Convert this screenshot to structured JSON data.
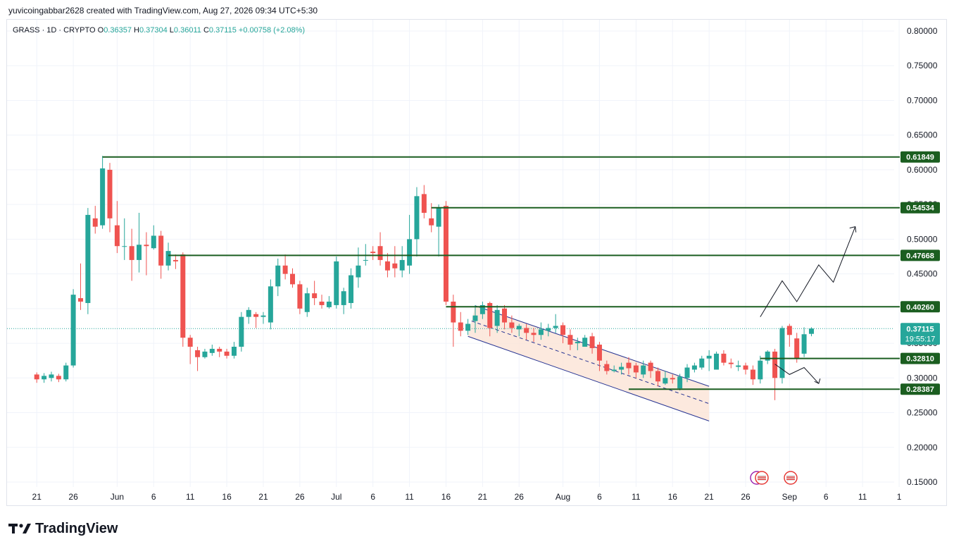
{
  "header": {
    "attribution": "yuvicoingabbar2628 created with TradingView.com, Aug 27, 2026 09:34 UTC+5:30"
  },
  "legend": {
    "symbol": "GRASS · 1D · CRYPTO",
    "open_label": "O",
    "open": "0.36357",
    "high_label": "H",
    "high": "0.37304",
    "low_label": "L",
    "low": "0.36011",
    "close_label": "C",
    "close": "0.37115",
    "change": "+0.00758 (+2.08%)"
  },
  "brand": {
    "name": "TradingView"
  },
  "colors": {
    "up": "#26a69a",
    "down": "#ef5350",
    "level": "#1b5e20",
    "channel": "#283593",
    "channel_fill": "#fbe3d6",
    "grid": "#f0f3fa",
    "current_tag": "#26a69a"
  },
  "chart_data": {
    "type": "candlestick",
    "interval": "1D",
    "ylim": [
      0.14,
      0.82
    ],
    "y_ticks": [
      "0.80000",
      "0.75000",
      "0.70000",
      "0.65000",
      "0.60000",
      "0.55000",
      "0.50000",
      "0.45000",
      "0.40000",
      "0.35000",
      "0.30000",
      "0.25000",
      "0.20000",
      "0.15000"
    ],
    "x_ticks": [
      {
        "label": "21",
        "day": 0
      },
      {
        "label": "26",
        "day": 5
      },
      {
        "label": "Jun",
        "day": 11
      },
      {
        "label": "6",
        "day": 16
      },
      {
        "label": "11",
        "day": 21
      },
      {
        "label": "16",
        "day": 26
      },
      {
        "label": "21",
        "day": 31
      },
      {
        "label": "26",
        "day": 36
      },
      {
        "label": "Jul",
        "day": 41
      },
      {
        "label": "6",
        "day": 46
      },
      {
        "label": "11",
        "day": 51
      },
      {
        "label": "16",
        "day": 56
      },
      {
        "label": "21",
        "day": 61
      },
      {
        "label": "26",
        "day": 66
      },
      {
        "label": "Aug",
        "day": 72
      },
      {
        "label": "6",
        "day": 77
      },
      {
        "label": "11",
        "day": 82
      },
      {
        "label": "16",
        "day": 87
      },
      {
        "label": "21",
        "day": 92
      },
      {
        "label": "26",
        "day": 97
      },
      {
        "label": "Sep",
        "day": 103
      },
      {
        "label": "6",
        "day": 108
      },
      {
        "label": "11",
        "day": 113
      },
      {
        "label": "1",
        "day": 118
      }
    ],
    "candles": [
      [
        0.305,
        0.298,
        0.308,
        0.293
      ],
      [
        0.298,
        0.303,
        0.307,
        0.293
      ],
      [
        0.3,
        0.305,
        0.309,
        0.295
      ],
      [
        0.303,
        0.298,
        0.306,
        0.294
      ],
      [
        0.298,
        0.318,
        0.322,
        0.295
      ],
      [
        0.318,
        0.42,
        0.428,
        0.315
      ],
      [
        0.415,
        0.41,
        0.465,
        0.398
      ],
      [
        0.408,
        0.535,
        0.545,
        0.392
      ],
      [
        0.53,
        0.518,
        0.548,
        0.508
      ],
      [
        0.52,
        0.602,
        0.62,
        0.515
      ],
      [
        0.6,
        0.53,
        0.61,
        0.51
      ],
      [
        0.52,
        0.49,
        0.555,
        0.48
      ],
      [
        0.49,
        0.49,
        0.53,
        0.47
      ],
      [
        0.49,
        0.47,
        0.515,
        0.44
      ],
      [
        0.47,
        0.492,
        0.538,
        0.452
      ],
      [
        0.492,
        0.49,
        0.51,
        0.448
      ],
      [
        0.487,
        0.505,
        0.52,
        0.485
      ],
      [
        0.505,
        0.462,
        0.512,
        0.443
      ],
      [
        0.462,
        0.483,
        0.495,
        0.455
      ],
      [
        0.47,
        0.468,
        0.478,
        0.457
      ],
      [
        0.478,
        0.358,
        0.481,
        0.345
      ],
      [
        0.358,
        0.345,
        0.362,
        0.32
      ],
      [
        0.34,
        0.33,
        0.345,
        0.31
      ],
      [
        0.33,
        0.338,
        0.342,
        0.328
      ],
      [
        0.336,
        0.342,
        0.348,
        0.332
      ],
      [
        0.342,
        0.338,
        0.345,
        0.33
      ],
      [
        0.338,
        0.332,
        0.342,
        0.328
      ],
      [
        0.332,
        0.345,
        0.352,
        0.328
      ],
      [
        0.345,
        0.388,
        0.395,
        0.338
      ],
      [
        0.388,
        0.398,
        0.402,
        0.378
      ],
      [
        0.392,
        0.388,
        0.395,
        0.372
      ],
      [
        0.388,
        0.39,
        0.395,
        0.378
      ],
      [
        0.38,
        0.432,
        0.442,
        0.37
      ],
      [
        0.432,
        0.462,
        0.472,
        0.418
      ],
      [
        0.462,
        0.45,
        0.478,
        0.442
      ],
      [
        0.45,
        0.435,
        0.458,
        0.43
      ],
      [
        0.435,
        0.4,
        0.44,
        0.392
      ],
      [
        0.395,
        0.422,
        0.43,
        0.388
      ],
      [
        0.422,
        0.415,
        0.44,
        0.405
      ],
      [
        0.41,
        0.405,
        0.42,
        0.4
      ],
      [
        0.402,
        0.41,
        0.418,
        0.4
      ],
      [
        0.405,
        0.468,
        0.475,
        0.4
      ],
      [
        0.405,
        0.425,
        0.43,
        0.392
      ],
      [
        0.408,
        0.448,
        0.458,
        0.4
      ],
      [
        0.445,
        0.462,
        0.488,
        0.43
      ],
      [
        0.47,
        0.47,
        0.493,
        0.462
      ],
      [
        0.482,
        0.48,
        0.49,
        0.47
      ],
      [
        0.49,
        0.47,
        0.51,
        0.462
      ],
      [
        0.468,
        0.455,
        0.48,
        0.445
      ],
      [
        0.465,
        0.458,
        0.49,
        0.445
      ],
      [
        0.455,
        0.47,
        0.49,
        0.445
      ],
      [
        0.462,
        0.5,
        0.535,
        0.45
      ],
      [
        0.5,
        0.562,
        0.575,
        0.475
      ],
      [
        0.565,
        0.538,
        0.578,
        0.53
      ],
      [
        0.53,
        0.52,
        0.552,
        0.51
      ],
      [
        0.518,
        0.545,
        0.55,
        0.475
      ],
      [
        0.548,
        0.41,
        0.555,
        0.405
      ],
      [
        0.41,
        0.38,
        0.42,
        0.345
      ],
      [
        0.38,
        0.368,
        0.395,
        0.36
      ],
      [
        0.368,
        0.378,
        0.385,
        0.362
      ],
      [
        0.382,
        0.39,
        0.405,
        0.365
      ],
      [
        0.392,
        0.405,
        0.41,
        0.385
      ],
      [
        0.408,
        0.372,
        0.41,
        0.36
      ],
      [
        0.375,
        0.398,
        0.405,
        0.365
      ],
      [
        0.4,
        0.38,
        0.405,
        0.37
      ],
      [
        0.38,
        0.372,
        0.39,
        0.365
      ],
      [
        0.37,
        0.375,
        0.378,
        0.36
      ],
      [
        0.372,
        0.365,
        0.378,
        0.355
      ],
      [
        0.365,
        0.362,
        0.372,
        0.352
      ],
      [
        0.362,
        0.37,
        0.38,
        0.355
      ],
      [
        0.368,
        0.372,
        0.378,
        0.36
      ],
      [
        0.372,
        0.375,
        0.392,
        0.365
      ],
      [
        0.376,
        0.362,
        0.38,
        0.35
      ],
      [
        0.362,
        0.348,
        0.37,
        0.34
      ],
      [
        0.35,
        0.352,
        0.358,
        0.34
      ],
      [
        0.345,
        0.358,
        0.362,
        0.345
      ],
      [
        0.36,
        0.343,
        0.365,
        0.335
      ],
      [
        0.348,
        0.325,
        0.352,
        0.31
      ],
      [
        0.32,
        0.31,
        0.325,
        0.305
      ],
      [
        0.31,
        0.312,
        0.318,
        0.308
      ],
      [
        0.312,
        0.316,
        0.322,
        0.305
      ],
      [
        0.322,
        0.314,
        0.33,
        0.305
      ],
      [
        0.318,
        0.308,
        0.322,
        0.3
      ],
      [
        0.305,
        0.318,
        0.325,
        0.3
      ],
      [
        0.322,
        0.31,
        0.325,
        0.3
      ],
      [
        0.31,
        0.295,
        0.315,
        0.288
      ],
      [
        0.292,
        0.3,
        0.31,
        0.29
      ],
      [
        0.3,
        0.298,
        0.305,
        0.292
      ],
      [
        0.285,
        0.302,
        0.306,
        0.282
      ],
      [
        0.3,
        0.315,
        0.32,
        0.294
      ],
      [
        0.312,
        0.318,
        0.322,
        0.308
      ],
      [
        0.315,
        0.328,
        0.332,
        0.312
      ],
      [
        0.328,
        0.332,
        0.34,
        0.31
      ],
      [
        0.312,
        0.335,
        0.338,
        0.312
      ],
      [
        0.335,
        0.322,
        0.34,
        0.318
      ],
      [
        0.322,
        0.32,
        0.328,
        0.314
      ],
      [
        0.316,
        0.318,
        0.325,
        0.31
      ],
      [
        0.318,
        0.312,
        0.322,
        0.305
      ],
      [
        0.312,
        0.298,
        0.318,
        0.29
      ],
      [
        0.298,
        0.325,
        0.332,
        0.292
      ],
      [
        0.325,
        0.338,
        0.34,
        0.32
      ],
      [
        0.338,
        0.3,
        0.342,
        0.268
      ],
      [
        0.3,
        0.372,
        0.375,
        0.292
      ],
      [
        0.375,
        0.362,
        0.378,
        0.345
      ],
      [
        0.357,
        0.328,
        0.365,
        0.322
      ],
      [
        0.335,
        0.363,
        0.373,
        0.33
      ],
      [
        0.36357,
        0.37115,
        0.37304,
        0.36011
      ]
    ],
    "horizontal_levels": [
      {
        "value": 0.61849,
        "label": "0.61849",
        "from_day": 9
      },
      {
        "value": 0.54534,
        "label": "0.54534",
        "from_day": 54
      },
      {
        "value": 0.47668,
        "label": "0.47668",
        "from_day": 18
      },
      {
        "value": 0.4026,
        "label": "0.40260",
        "from_day": 56
      },
      {
        "value": 0.3281,
        "label": "0.32810",
        "from_day": 99
      },
      {
        "value": 0.28387,
        "label": "0.28387",
        "from_day": 81
      }
    ],
    "current_price": {
      "value": 0.37115,
      "label": "0.37115",
      "countdown": "19:55:17"
    },
    "channel": {
      "upper_start": [
        60,
        0.404
      ],
      "upper_end": [
        92,
        0.288
      ],
      "lower_start": [
        59,
        0.36
      ],
      "lower_end": [
        92,
        0.238
      ]
    },
    "projection_up": [
      [
        99,
        0.388
      ],
      [
        102,
        0.44
      ],
      [
        104,
        0.41
      ],
      [
        107,
        0.463
      ],
      [
        109,
        0.438
      ],
      [
        112,
        0.518
      ]
    ],
    "projection_down": [
      [
        101,
        0.32
      ],
      [
        103,
        0.305
      ],
      [
        105,
        0.315
      ],
      [
        107,
        0.292
      ]
    ]
  }
}
